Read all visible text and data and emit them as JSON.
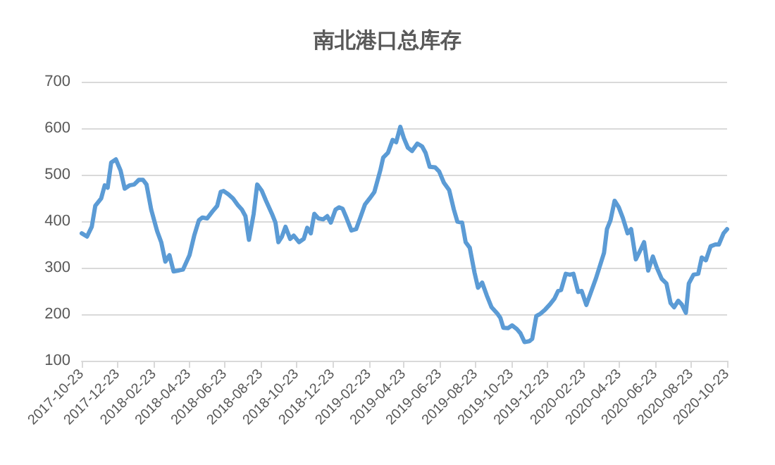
{
  "chart_data": {
    "type": "line",
    "title": "南北港口总库存",
    "x": [
      "2017-10-23",
      "2017-11-01",
      "2017-11-09",
      "2017-11-15",
      "2017-11-25",
      "2017-12-01",
      "2017-12-06",
      "2017-12-12",
      "2017-12-20",
      "2017-12-28",
      "2018-01-04",
      "2018-01-12",
      "2018-01-20",
      "2018-01-28",
      "2018-02-04",
      "2018-02-10",
      "2018-02-18",
      "2018-02-28",
      "2018-03-07",
      "2018-03-14",
      "2018-03-21",
      "2018-03-28",
      "2018-04-05",
      "2018-04-13",
      "2018-04-24",
      "2018-05-02",
      "2018-05-10",
      "2018-05-16",
      "2018-05-24",
      "2018-06-02",
      "2018-06-10",
      "2018-06-16",
      "2018-06-21",
      "2018-06-29",
      "2018-07-07",
      "2018-07-15",
      "2018-07-22",
      "2018-07-28",
      "2018-08-03",
      "2018-08-11",
      "2018-08-17",
      "2018-08-25",
      "2018-09-01",
      "2018-09-11",
      "2018-09-17",
      "2018-09-22",
      "2018-09-28",
      "2018-10-04",
      "2018-10-12",
      "2018-10-18",
      "2018-10-27",
      "2018-11-04",
      "2018-11-10",
      "2018-11-16",
      "2018-11-22",
      "2018-11-29",
      "2018-12-07",
      "2018-12-14",
      "2018-12-20",
      "2018-12-28",
      "2019-01-03",
      "2019-01-09",
      "2019-01-16",
      "2019-01-24",
      "2019-02-01",
      "2019-02-09",
      "2019-02-16",
      "2019-02-24",
      "2019-03-04",
      "2019-03-14",
      "2019-03-19",
      "2019-03-27",
      "2019-04-04",
      "2019-04-10",
      "2019-04-17",
      "2019-04-23",
      "2019-04-30",
      "2019-05-07",
      "2019-05-16",
      "2019-05-24",
      "2019-05-30",
      "2019-06-06",
      "2019-06-15",
      "2019-06-22",
      "2019-06-30",
      "2019-07-09",
      "2019-07-17",
      "2019-07-23",
      "2019-07-31",
      "2019-08-06",
      "2019-08-13",
      "2019-08-21",
      "2019-08-27",
      "2019-09-03",
      "2019-09-11",
      "2019-09-19",
      "2019-09-29",
      "2019-10-04",
      "2019-10-09",
      "2019-10-17",
      "2019-10-24",
      "2019-11-01",
      "2019-11-07",
      "2019-11-14",
      "2019-11-22",
      "2019-11-27",
      "2019-12-04",
      "2019-12-11",
      "2019-12-19",
      "2019-12-27",
      "2020-01-04",
      "2020-01-10",
      "2020-01-15",
      "2020-01-23",
      "2020-01-30",
      "2020-02-05",
      "2020-02-13",
      "2020-02-19",
      "2020-02-27",
      "2020-03-06",
      "2020-03-14",
      "2020-03-21",
      "2020-03-28",
      "2020-04-02",
      "2020-04-08",
      "2020-04-15",
      "2020-04-22",
      "2020-04-29",
      "2020-05-07",
      "2020-05-13",
      "2020-05-21",
      "2020-05-28",
      "2020-06-04",
      "2020-06-11",
      "2020-06-19",
      "2020-06-26",
      "2020-07-04",
      "2020-07-12",
      "2020-07-19",
      "2020-07-25",
      "2020-08-01",
      "2020-08-07",
      "2020-08-14",
      "2020-08-19",
      "2020-08-27",
      "2020-09-04",
      "2020-09-10",
      "2020-09-17",
      "2020-09-25",
      "2020-10-03",
      "2020-10-09",
      "2020-10-17",
      "2020-10-23"
    ],
    "series": [
      {
        "color": "#5b9bd5",
        "values": [
          374,
          367,
          388,
          433,
          449,
          477,
          472,
          526,
          533,
          509,
          470,
          477,
          479,
          489,
          489,
          479,
          425,
          379,
          355,
          313,
          327,
          292,
          294,
          296,
          327,
          369,
          402,
          408,
          406,
          421,
          433,
          463,
          465,
          458,
          449,
          435,
          425,
          411,
          360,
          416,
          479,
          465,
          444,
          416,
          397,
          355,
          367,
          388,
          362,
          369,
          355,
          362,
          386,
          374,
          416,
          406,
          404,
          411,
          397,
          425,
          430,
          427,
          406,
          380,
          383,
          411,
          436,
          449,
          463,
          509,
          537,
          547,
          575,
          570,
          603,
          579,
          558,
          551,
          567,
          561,
          547,
          517,
          516,
          507,
          483,
          467,
          425,
          399,
          397,
          355,
          343,
          290,
          257,
          268,
          240,
          215,
          201,
          192,
          171,
          170,
          176,
          168,
          159,
          140,
          142,
          147,
          196,
          201,
          210,
          221,
          234,
          250,
          252,
          287,
          285,
          287,
          248,
          250,
          220,
          248,
          276,
          304,
          332,
          383,
          402,
          444,
          430,
          407,
          374,
          383,
          318,
          336,
          355,
          294,
          324,
          299,
          276,
          266,
          224,
          215,
          229,
          221,
          203,
          266,
          285,
          287,
          322,
          316,
          346,
          350,
          350,
          374,
          383
        ]
      }
    ],
    "xlim": [
      "2017-10-23",
      "2020-10-23"
    ],
    "xticks": [
      "2017-10-23",
      "2017-12-23",
      "2018-02-23",
      "2018-04-23",
      "2018-06-23",
      "2018-08-23",
      "2018-10-23",
      "2018-12-23",
      "2019-02-23",
      "2019-04-23",
      "2019-06-23",
      "2019-08-23",
      "2019-10-23",
      "2019-12-23",
      "2020-02-23",
      "2020-04-23",
      "2020-06-23",
      "2020-08-23",
      "2020-10-23"
    ],
    "ylim": [
      100,
      700
    ],
    "yticks": [
      100,
      200,
      300,
      400,
      500,
      600,
      700
    ],
    "grid": "y",
    "marker": "none",
    "line_style": "solid"
  }
}
